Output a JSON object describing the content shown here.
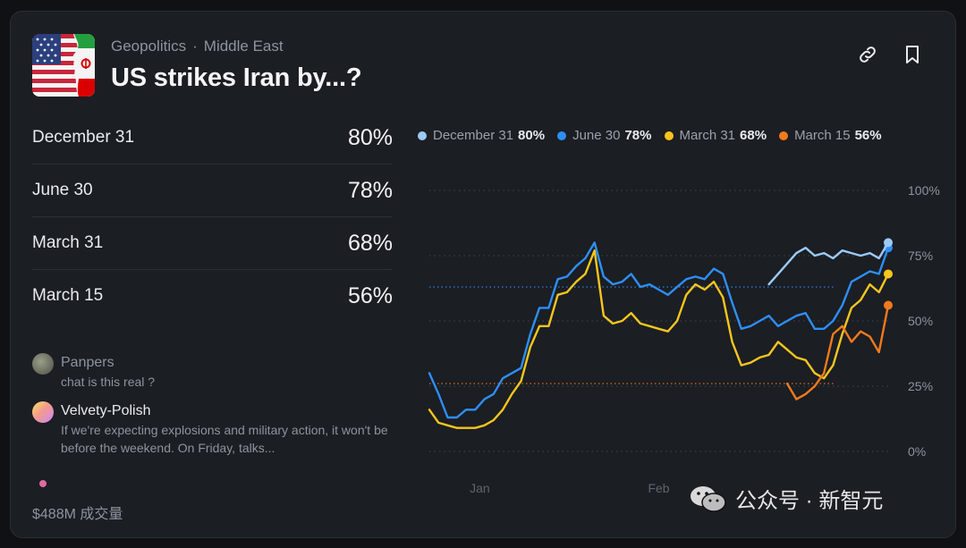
{
  "header": {
    "category": "Geopolitics",
    "subcategory": "Middle East",
    "title": "US strikes Iran by...?",
    "icons": [
      "link-icon",
      "bookmark-icon"
    ]
  },
  "outcomes": [
    {
      "label": "December 31",
      "pct": "80%"
    },
    {
      "label": "June 30",
      "pct": "78%"
    },
    {
      "label": "March 31",
      "pct": "68%"
    },
    {
      "label": "March 15",
      "pct": "56%"
    }
  ],
  "comments": [
    {
      "user": "Panpers",
      "text": "chat is this real ?"
    },
    {
      "user": "Velvety-Polish",
      "text": "If we're expecting explosions and military action, it won't be before the weekend. On Friday, talks..."
    }
  ],
  "volume": "$488M 成交量",
  "watermark": "公众号 · 新智元",
  "colors": {
    "december": "#9ccaf7",
    "june": "#2e8ef5",
    "march31": "#f7c51e",
    "march15": "#f27a1c",
    "accent_text": "#e9ecef",
    "muted_text": "#8d949d"
  },
  "chart_data": {
    "type": "line",
    "x": [
      0,
      2,
      4,
      6,
      8,
      10,
      12,
      14,
      16,
      18,
      20,
      22,
      24,
      26,
      28,
      30,
      32,
      34,
      36,
      38,
      40,
      42,
      44,
      46,
      48,
      50,
      52,
      54,
      56,
      58,
      60,
      62,
      64,
      66,
      68,
      70,
      72,
      74,
      76,
      78,
      80,
      82,
      84,
      86,
      88,
      90,
      92,
      94,
      96,
      98,
      100
    ],
    "x_ticks": [
      {
        "at": 11,
        "label": "Jan"
      },
      {
        "at": 50,
        "label": "Feb"
      }
    ],
    "y_ticks": [
      "100%",
      "75%",
      "50%",
      "25%",
      "0%"
    ],
    "ylim": [
      0,
      100
    ],
    "series": [
      {
        "name": "December 31",
        "color": "#9ccaf7",
        "current": "80%",
        "start_x": 74,
        "values": [
          null,
          null,
          null,
          null,
          null,
          null,
          null,
          null,
          null,
          null,
          null,
          null,
          null,
          null,
          null,
          null,
          null,
          null,
          null,
          null,
          null,
          null,
          null,
          null,
          null,
          null,
          null,
          null,
          null,
          null,
          null,
          null,
          null,
          null,
          null,
          null,
          null,
          64,
          68,
          72,
          76,
          78,
          75,
          76,
          74,
          77,
          76,
          75,
          76,
          74,
          80
        ]
      },
      {
        "name": "June 30",
        "color": "#2e8ef5",
        "current": "78%",
        "start_x": 0,
        "values": [
          30,
          22,
          13,
          13,
          16,
          16,
          20,
          22,
          28,
          30,
          32,
          45,
          55,
          55,
          66,
          67,
          71,
          74,
          80,
          67,
          64,
          65,
          68,
          63,
          64,
          62,
          60,
          63,
          66,
          67,
          66,
          70,
          68,
          57,
          47,
          48,
          50,
          52,
          48,
          50,
          52,
          53,
          47,
          47,
          50,
          56,
          65,
          67,
          69,
          68,
          78
        ]
      },
      {
        "name": "March 31",
        "color": "#f7c51e",
        "current": "68%",
        "start_x": 0,
        "values": [
          16,
          11,
          10,
          9,
          9,
          9,
          10,
          12,
          16,
          22,
          27,
          40,
          48,
          48,
          60,
          61,
          65,
          68,
          77,
          52,
          49,
          50,
          53,
          49,
          48,
          47,
          46,
          50,
          60,
          64,
          62,
          65,
          59,
          42,
          33,
          34,
          36,
          37,
          42,
          39,
          36,
          35,
          30,
          28,
          33,
          45,
          55,
          58,
          64,
          61,
          68
        ]
      },
      {
        "name": "March 15",
        "color": "#f27a1c",
        "current": "56%",
        "start_x": 78,
        "values": [
          null,
          null,
          null,
          null,
          null,
          null,
          null,
          null,
          null,
          null,
          null,
          null,
          null,
          null,
          null,
          null,
          null,
          null,
          null,
          null,
          null,
          null,
          null,
          null,
          null,
          null,
          null,
          null,
          null,
          null,
          null,
          null,
          null,
          null,
          null,
          null,
          null,
          null,
          null,
          26,
          20,
          22,
          25,
          30,
          45,
          48,
          42,
          46,
          44,
          38,
          56
        ]
      }
    ],
    "reference_lines": [
      {
        "y": 63,
        "color": "#2e8ef5"
      },
      {
        "y": 26,
        "color": "#f27a1c"
      }
    ],
    "legend_placement": "top",
    "grid": true
  }
}
